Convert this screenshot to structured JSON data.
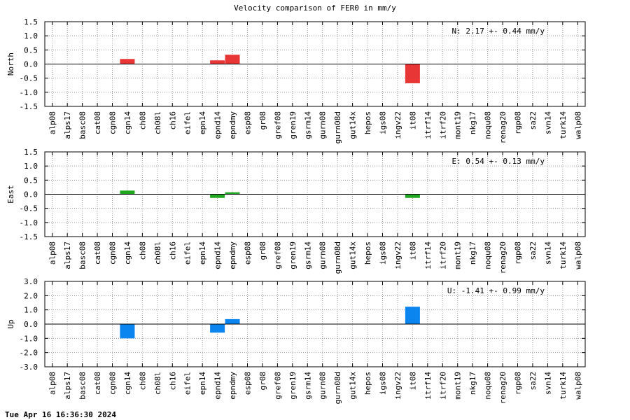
{
  "page": {
    "title": "Velocity comparison of FER0 in mm/y",
    "footer": "Tue Apr 16 16:36:30 2024"
  },
  "chart_data": {
    "type": "bar",
    "title": "Velocity comparison of FER0 in mm/y",
    "categories": [
      "alp08",
      "alps17",
      "basc08",
      "cat08",
      "cgn08",
      "cgn14",
      "ch08",
      "ch08l",
      "ch16",
      "eifel",
      "epn14",
      "epnd14",
      "epndmy",
      "esp08",
      "gr08",
      "gref08",
      "gren19",
      "gsrm14",
      "gurn08",
      "gurn08d",
      "gut14x",
      "hepos",
      "igs08",
      "ingv22",
      "it08",
      "itrf14",
      "itrf20",
      "mont19",
      "nkg17",
      "noqu08",
      "renag20",
      "rgp08",
      "sa22",
      "svn14",
      "turk14",
      "walp08"
    ],
    "grid": true,
    "panels": [
      {
        "ylabel": "North",
        "color": "#e83535",
        "ylim": [
          -1.5,
          1.5
        ],
        "yticks": [
          1.5,
          1.0,
          0.5,
          0.0,
          -0.5,
          -1.0,
          -1.5
        ],
        "ytick_labels": [
          "1.5",
          "1.0",
          "0.5",
          "0.0",
          "-0.5",
          "-1.0",
          "-1.5"
        ],
        "annotation": "N:   2.17 +-  0.44 mm/y",
        "values": [
          null,
          null,
          null,
          null,
          null,
          0.18,
          null,
          null,
          null,
          null,
          null,
          0.13,
          0.33,
          null,
          null,
          null,
          null,
          null,
          null,
          null,
          null,
          null,
          null,
          null,
          -0.68,
          null,
          null,
          null,
          null,
          null,
          null,
          null,
          null,
          null,
          null,
          null
        ]
      },
      {
        "ylabel": "East",
        "color": "#1fa81f",
        "ylim": [
          -1.5,
          1.5
        ],
        "yticks": [
          1.5,
          1.0,
          0.5,
          0.0,
          -0.5,
          -1.0,
          -1.5
        ],
        "ytick_labels": [
          "1.5",
          "1.0",
          "0.5",
          "0.0",
          "-0.5",
          "-1.0",
          "-1.5"
        ],
        "annotation": "E:   0.54 +-  0.13 mm/y",
        "values": [
          null,
          null,
          null,
          null,
          null,
          0.13,
          null,
          null,
          null,
          null,
          null,
          -0.13,
          0.07,
          null,
          null,
          null,
          null,
          null,
          null,
          null,
          null,
          null,
          null,
          null,
          -0.13,
          null,
          null,
          null,
          null,
          null,
          null,
          null,
          null,
          null,
          null,
          null
        ]
      },
      {
        "ylabel": "Up",
        "color": "#0a84ef",
        "ylim": [
          -3.0,
          3.0
        ],
        "yticks": [
          3.0,
          2.0,
          1.0,
          0.0,
          -1.0,
          -2.0,
          -3.0
        ],
        "ytick_labels": [
          "3.0",
          "2.0",
          "1.0",
          "0.0",
          "-1.0",
          "-2.0",
          "-3.0"
        ],
        "annotation": "U:  -1.41 +-  0.99 mm/y",
        "values": [
          null,
          null,
          null,
          null,
          null,
          -1.0,
          null,
          null,
          null,
          null,
          null,
          -0.6,
          0.35,
          null,
          null,
          null,
          null,
          null,
          null,
          null,
          null,
          null,
          null,
          null,
          1.22,
          null,
          null,
          null,
          null,
          null,
          null,
          null,
          null,
          null,
          null,
          null
        ]
      }
    ]
  }
}
